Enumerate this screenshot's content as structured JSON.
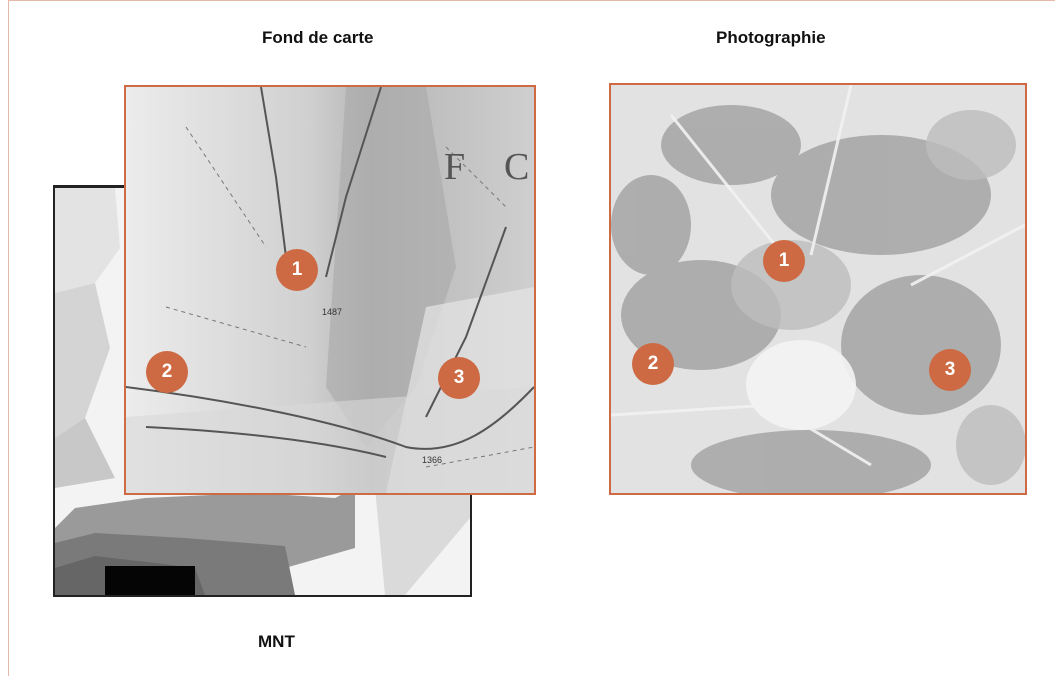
{
  "labels": {
    "map": "Fond de carte",
    "photo": "Photographie",
    "dem": "MNT"
  },
  "map_text": {
    "letter1": "F",
    "letter2": "C",
    "alt1": "1487",
    "alt2": "1366"
  },
  "markers": [
    "1",
    "2",
    "3"
  ],
  "colors": {
    "accent": "#cd6a43",
    "frame": "#e6b8a8",
    "panel_border": "#d06a44",
    "dem_border": "#222222"
  }
}
